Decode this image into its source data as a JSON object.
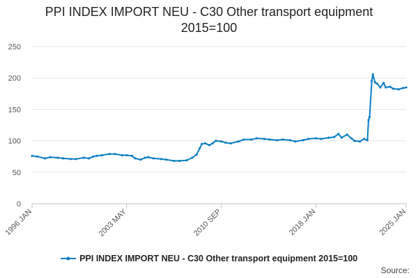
{
  "page": {
    "title_line1": "PPI INDEX IMPORT NEU - C30 Other transport equipment",
    "title_line2": "2015=100",
    "source_label": "Source:"
  },
  "colors": {
    "series": "#0b7dc2",
    "grid": "#e6e6e6",
    "axis": "#c0c0c0"
  },
  "chart_data": {
    "type": "line",
    "title": "PPI INDEX IMPORT NEU - C30 Other transport equipment 2015=100",
    "xlabel": "",
    "ylabel": "",
    "ylim": [
      0,
      250
    ],
    "yticks": [
      0,
      50,
      100,
      150,
      200,
      250
    ],
    "xlim": [
      "1996-01",
      "2025-01"
    ],
    "xticks": [
      "1996 JAN",
      "2003 MAY",
      "2010 SEP",
      "2018 JAN",
      "2025 JAN"
    ],
    "grid": "horizontal",
    "legend_position": "bottom",
    "series": [
      {
        "name": "PPI INDEX IMPORT NEU - C30 Other transport equipment 2015=100",
        "points": [
          [
            "1996-01",
            76
          ],
          [
            "1996-06",
            75
          ],
          [
            "1997-01",
            72
          ],
          [
            "1997-06",
            74
          ],
          [
            "1998-01",
            73
          ],
          [
            "1998-06",
            72
          ],
          [
            "1999-01",
            71
          ],
          [
            "1999-06",
            71
          ],
          [
            "2000-01",
            73
          ],
          [
            "2000-06",
            72
          ],
          [
            "2000-10",
            75
          ],
          [
            "2001-01",
            76
          ],
          [
            "2001-06",
            77
          ],
          [
            "2002-01",
            79
          ],
          [
            "2002-06",
            79
          ],
          [
            "2003-01",
            77
          ],
          [
            "2003-05",
            77
          ],
          [
            "2003-10",
            76
          ],
          [
            "2004-01",
            72
          ],
          [
            "2004-06",
            70
          ],
          [
            "2004-10",
            73
          ],
          [
            "2005-01",
            74
          ],
          [
            "2005-06",
            72
          ],
          [
            "2006-01",
            71
          ],
          [
            "2006-06",
            70
          ],
          [
            "2007-01",
            68
          ],
          [
            "2007-06",
            68
          ],
          [
            "2008-01",
            69
          ],
          [
            "2008-06",
            73
          ],
          [
            "2008-10",
            78
          ],
          [
            "2009-01",
            88
          ],
          [
            "2009-03",
            95
          ],
          [
            "2009-06",
            96
          ],
          [
            "2009-10",
            93
          ],
          [
            "2010-01",
            96
          ],
          [
            "2010-04",
            100
          ],
          [
            "2010-09",
            99
          ],
          [
            "2011-01",
            97
          ],
          [
            "2011-06",
            96
          ],
          [
            "2012-01",
            99
          ],
          [
            "2012-06",
            102
          ],
          [
            "2013-01",
            102
          ],
          [
            "2013-06",
            104
          ],
          [
            "2014-01",
            103
          ],
          [
            "2014-06",
            102
          ],
          [
            "2015-01",
            101
          ],
          [
            "2015-06",
            102
          ],
          [
            "2016-01",
            101
          ],
          [
            "2016-06",
            99
          ],
          [
            "2017-01",
            101
          ],
          [
            "2017-06",
            103
          ],
          [
            "2018-01",
            104
          ],
          [
            "2018-06",
            103
          ],
          [
            "2019-01",
            105
          ],
          [
            "2019-06",
            106
          ],
          [
            "2019-10",
            111
          ],
          [
            "2020-01",
            105
          ],
          [
            "2020-06",
            110
          ],
          [
            "2020-10",
            104
          ],
          [
            "2021-01",
            100
          ],
          [
            "2021-06",
            99
          ],
          [
            "2021-10",
            103
          ],
          [
            "2022-01",
            101
          ],
          [
            "2022-02",
            133
          ],
          [
            "2022-03",
            138
          ],
          [
            "2022-05",
            195
          ],
          [
            "2022-06",
            206
          ],
          [
            "2022-08",
            193
          ],
          [
            "2022-10",
            191
          ],
          [
            "2023-01",
            185
          ],
          [
            "2023-04",
            192
          ],
          [
            "2023-06",
            185
          ],
          [
            "2023-10",
            186
          ],
          [
            "2024-01",
            183
          ],
          [
            "2024-06",
            182
          ],
          [
            "2024-10",
            184
          ],
          [
            "2025-01",
            185
          ]
        ]
      }
    ]
  }
}
